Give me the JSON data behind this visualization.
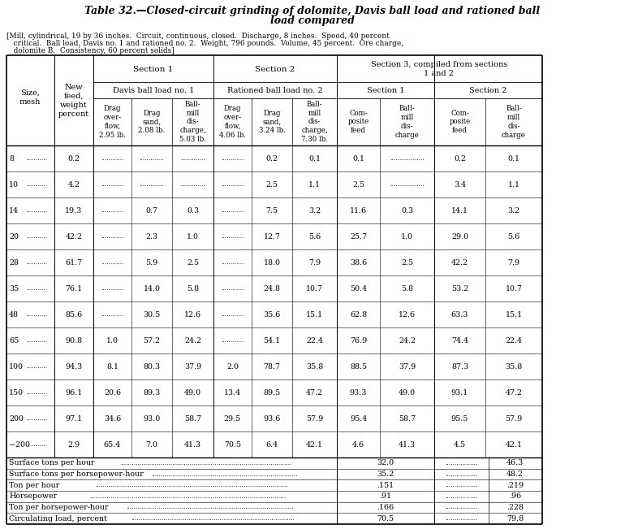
{
  "title_line1": "Table 32.—Closed-circuit grinding of dolomite, Davis ball load and rationed ball",
  "title_line2": "load compared",
  "subtitle_lines": [
    "[Mill, cylindrical, 19 by 36 inches.  Circuit, continuous, closed.  Discharge, 8 inches.  Speed, 40 percent",
    "   critical.  Ball load, Davis no. 1 and rationed no. 2.  Weight, 796 pounds.  Volume, 45 percent.  Ore charge,",
    "   dolomite B.  Consistency, 60 percent solids]"
  ],
  "col_headers_bottom": [
    "Drag\nover-\nflow,\n2.95 lb.",
    "Drag\nsand,\n2.08 lb.",
    "Ball-\nmill\ndis-\ncharge,\n5.03 lb.",
    "Drag\nover-\nflow,\n4.06 lb.",
    "Drag\nsand,\n3.24 lb.",
    "Ball-\nmill\ndis-\ncharge,\n7.30 lb.",
    "Com-\nposite\nfeed",
    "Ball-\nmill\ndis-\ncharge",
    "Com-\nposite\nfeed",
    "Ball-\nmill\ndis-\ncharge"
  ],
  "data_rows": [
    [
      "8",
      "0.2",
      "",
      "",
      "",
      "",
      "0.2",
      "0.1",
      "0.1",
      "",
      "0.2",
      "0.1"
    ],
    [
      "10",
      "4.2",
      "",
      "",
      "",
      "",
      "2.5",
      "1.1",
      "2.5",
      "",
      "3.4",
      "1.1"
    ],
    [
      "14",
      "19.3",
      "",
      "0.7",
      "0.3",
      "",
      "7.5",
      "3.2",
      "11.6",
      "0.3",
      "14.1",
      "3.2"
    ],
    [
      "20",
      "42.2",
      "",
      "2.3",
      "1.0",
      "",
      "12.7",
      "5.6",
      "25.7",
      "1.0",
      "29.0",
      "5.6"
    ],
    [
      "28",
      "61.7",
      "",
      "5.9",
      "2.5",
      "",
      "18.0",
      "7.9",
      "38.6",
      "2.5",
      "42.2",
      "7.9"
    ],
    [
      "35",
      "76.1",
      "",
      "14.0",
      "5.8",
      "",
      "24.8",
      "10.7",
      "50.4",
      "5.8",
      "53.2",
      "10.7"
    ],
    [
      "48",
      "85.6",
      "",
      "30.5",
      "12.6",
      "",
      "35.6",
      "15.1",
      "62.8",
      "12.6",
      "63.3",
      "15.1"
    ],
    [
      "65",
      "90.8",
      "1.0",
      "57.2",
      "24.2",
      "",
      "54.1",
      "22.4",
      "76.9",
      "24.2",
      "74.4",
      "22.4"
    ],
    [
      "100",
      "94.3",
      "8.1",
      "80.3",
      "37.9",
      "2.0",
      "78.7",
      "35.8",
      "88.5",
      "37.9",
      "87.3",
      "35.8"
    ],
    [
      "150",
      "96.1",
      "20.6",
      "89.3",
      "49.0",
      "13.4",
      "89.5",
      "47.2",
      "93.3",
      "49.0",
      "93.1",
      "47.2"
    ],
    [
      "200",
      "97.1",
      "34.6",
      "93.0",
      "58.7",
      "29.5",
      "93.6",
      "57.9",
      "95.4",
      "58.7",
      "95.5",
      "57.9"
    ],
    [
      "−200",
      "2.9",
      "65.4",
      "7.0",
      "41.3",
      "70.5",
      "6.4",
      "42.1",
      "4.6",
      "41.3",
      "4.5",
      "42.1"
    ]
  ],
  "summary_rows": [
    [
      "Surface tons per hour",
      "32.0",
      "46.3"
    ],
    [
      "Surface tons per horsepower-hour",
      "35.2",
      "48.2"
    ],
    [
      "Ton per hour",
      ".151",
      ".219"
    ],
    [
      "Horsepower",
      ".91",
      ".96"
    ],
    [
      "Ton per horsepower-hour",
      ".166",
      ".228"
    ],
    [
      "Circulating load, percent",
      "70.5",
      "79.8"
    ]
  ]
}
